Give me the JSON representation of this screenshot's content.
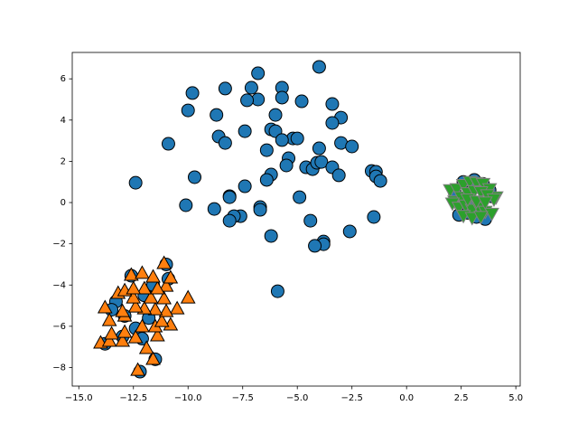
{
  "chart_data": {
    "type": "scatter",
    "xlim": [
      -15.3,
      5.2
    ],
    "ylim": [
      -8.9,
      7.28
    ],
    "xticks": [
      {
        "value": -15,
        "label": "−15.0"
      },
      {
        "value": -12.5,
        "label": "−12.5"
      },
      {
        "value": -10,
        "label": "−10.0"
      },
      {
        "value": -7.5,
        "label": "−7.5"
      },
      {
        "value": -5,
        "label": "−5.0"
      },
      {
        "value": -2.5,
        "label": "−2.5"
      },
      {
        "value": 0,
        "label": "0.0"
      },
      {
        "value": 2.5,
        "label": "2.5"
      },
      {
        "value": 5,
        "label": "5.0"
      }
    ],
    "yticks": [
      {
        "value": -8,
        "label": "−8"
      },
      {
        "value": -6,
        "label": "−6"
      },
      {
        "value": -4,
        "label": "−4"
      },
      {
        "value": -2,
        "label": "−2"
      },
      0,
      2,
      4,
      6
    ],
    "series": [
      {
        "color": "#1f77b4",
        "edgecolor": "#000000",
        "marker": "circle",
        "x": [
          -4.0,
          -6.8,
          -5.7,
          -7.1,
          -8.3,
          -9.8,
          -6.8,
          -7.3,
          -5.7,
          -4.8,
          -3.4,
          -10.0,
          -6.0,
          -8.7,
          -3.0,
          -3.4,
          -6.2,
          -7.4,
          -6.0,
          -8.6,
          -8.3,
          -10.9,
          -5.2,
          -5.0,
          -5.7,
          -3.0,
          -2.5,
          -6.4,
          -4.0,
          -5.4,
          -5.5,
          -4.6,
          -4.3,
          -4.1,
          -3.9,
          -3.4,
          -3.1,
          -1.6,
          -1.4,
          -1.4,
          -1.2,
          -6.2,
          -6.4,
          -9.7,
          -12.4,
          -7.4,
          -8.1,
          -4.9,
          -8.1,
          -10.1,
          -8.8,
          -6.7,
          -6.7,
          -7.6,
          -7.9,
          -8.1,
          -4.4,
          -1.5,
          -6.2,
          -2.6,
          -3.8,
          -3.8,
          -4.2,
          -5.9,
          -13.8,
          -13.0,
          -12.2,
          -11.5,
          -12.6,
          -11.0,
          -12.0,
          -13.3,
          -11.8,
          -12.4,
          -10.9,
          -12.9,
          -11.6,
          -12.1,
          -13.5,
          2.4,
          2.8,
          3.2,
          3.6,
          3.9,
          2.6,
          3.1,
          3.5,
          2.9,
          3.3,
          2.2,
          3.8
        ],
        "values": [
          6.58,
          6.27,
          5.57,
          5.57,
          5.53,
          5.31,
          5.0,
          4.96,
          5.09,
          4.91,
          4.78,
          4.47,
          4.25,
          4.25,
          4.12,
          3.86,
          3.55,
          3.46,
          3.46,
          3.2,
          2.89,
          2.85,
          3.11,
          3.11,
          3.03,
          2.89,
          2.72,
          2.54,
          2.63,
          2.15,
          1.8,
          1.71,
          1.62,
          1.93,
          1.97,
          1.71,
          1.32,
          1.53,
          1.49,
          1.27,
          1.05,
          1.36,
          1.1,
          1.23,
          0.96,
          0.79,
          0.31,
          0.26,
          0.26,
          -0.13,
          -0.31,
          -0.22,
          -0.35,
          -0.66,
          -0.66,
          -0.88,
          -0.88,
          -0.7,
          -1.62,
          -1.4,
          -1.89,
          -2.02,
          -2.1,
          -4.3,
          -6.85,
          -6.5,
          -8.2,
          -7.6,
          -3.55,
          -3.0,
          -4.5,
          -4.8,
          -5.6,
          -6.1,
          -3.7,
          -5.5,
          -4.0,
          -6.6,
          -5.2,
          -0.6,
          -0.5,
          -0.7,
          -0.8,
          0.3,
          1.0,
          1.1,
          0.9,
          0.2,
          -0.2,
          0.5,
          0.6
        ]
      },
      {
        "color": "#ff7f0e",
        "edgecolor": "#000000",
        "marker": "triangle-up",
        "x": [
          -14.0,
          -13.6,
          -13.0,
          -12.3,
          -11.6,
          -11.9,
          -11.4,
          -12.4,
          -12.9,
          -13.5,
          -13.6,
          -12.9,
          -12.1,
          -11.5,
          -10.8,
          -11.2,
          -10.5,
          -10.0,
          -11.0,
          -11.5,
          -12.0,
          -12.4,
          -13.0,
          -13.8,
          -13.2,
          -12.5,
          -11.7,
          -11.1,
          -11.0,
          -11.4,
          -12.0,
          -12.6,
          -12.1,
          -11.1,
          -10.8,
          -11.6,
          -12.9,
          -12.5
        ],
        "values": [
          -6.84,
          -6.75,
          -6.75,
          -8.16,
          -7.63,
          -7.1,
          -6.49,
          -6.58,
          -6.32,
          -6.4,
          -5.75,
          -5.53,
          -6.05,
          -6.05,
          -5.96,
          -5.79,
          -5.18,
          -4.65,
          -5.31,
          -5.22,
          -5.18,
          -5.09,
          -5.31,
          -5.13,
          -4.43,
          -4.65,
          -4.65,
          -4.69,
          -4.08,
          -4.21,
          -4.21,
          -3.55,
          -3.46,
          -2.98,
          -3.68,
          -3.64,
          -4.3,
          -4.21
        ]
      },
      {
        "color": "#2ca02c",
        "edgecolor": "#808080",
        "marker": "triangle-down",
        "x": [
          2.0,
          2.3,
          2.6,
          2.9,
          3.2,
          3.5,
          3.8,
          4.1,
          2.2,
          2.5,
          2.8,
          3.1,
          3.4,
          3.7,
          4.0,
          2.1,
          2.4,
          2.7,
          3.0,
          3.3,
          3.6,
          3.9,
          2.6,
          3.0,
          3.4,
          2.8,
          3.2,
          3.6
        ],
        "values": [
          0.65,
          0.7,
          0.9,
          1.05,
          1.0,
          0.95,
          0.7,
          0.3,
          0.1,
          0.3,
          0.5,
          0.6,
          0.55,
          0.4,
          0.2,
          0.0,
          -0.2,
          -0.1,
          -0.3,
          -0.2,
          -0.4,
          -0.5,
          -0.6,
          -0.7,
          -0.65,
          0.2,
          0.1,
          0.05
        ]
      }
    ]
  }
}
